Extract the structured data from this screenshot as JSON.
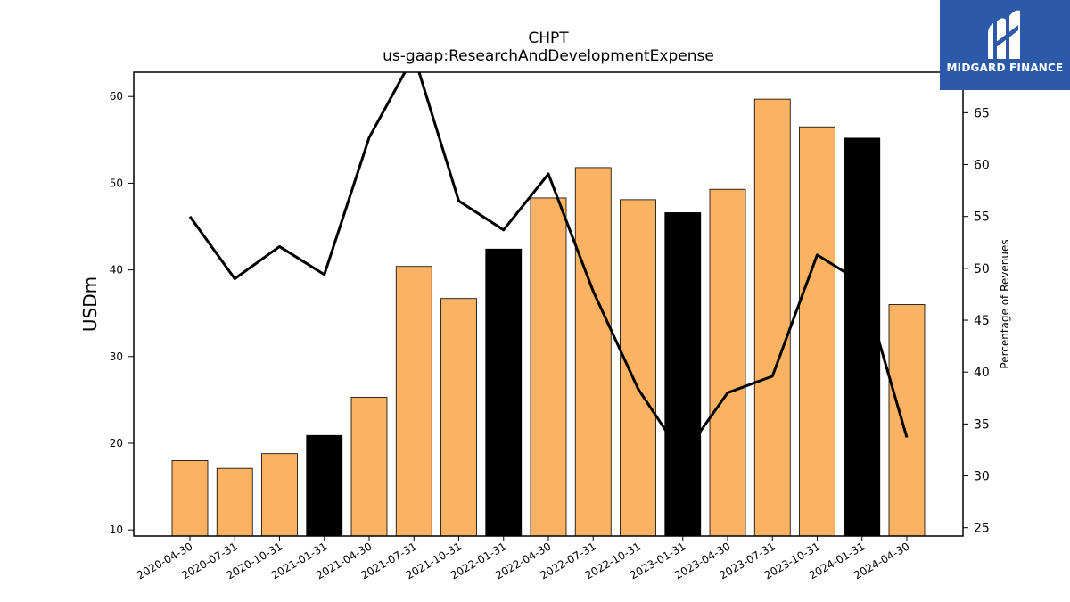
{
  "chart_data": {
    "type": "bar",
    "title": "CHPT",
    "subtitle": "us-gaap:ResearchAndDevelopmentExpense",
    "ylabel": "USDm",
    "y2label": "Percentage of Revenues",
    "categories": [
      "2020-04-30",
      "2020-07-31",
      "2020-10-31",
      "2021-01-31",
      "2021-04-30",
      "2021-07-31",
      "2021-10-31",
      "2022-01-31",
      "2022-04-30",
      "2022-07-31",
      "2022-10-31",
      "2023-01-31",
      "2023-04-30",
      "2023-07-31",
      "2023-10-31",
      "2024-01-31",
      "2024-04-30"
    ],
    "values": [
      18.0,
      17.1,
      18.8,
      20.9,
      25.3,
      40.4,
      36.7,
      42.4,
      48.3,
      51.8,
      48.1,
      46.6,
      49.3,
      59.7,
      56.5,
      55.2,
      36.0
    ],
    "bar_colors": [
      "#fbb262",
      "#fbb262",
      "#fbb262",
      "#000000",
      "#fbb262",
      "#fbb262",
      "#fbb262",
      "#000000",
      "#fbb262",
      "#fbb262",
      "#fbb262",
      "#000000",
      "#fbb262",
      "#fbb262",
      "#fbb262",
      "#000000",
      "#fbb262"
    ],
    "line_series": {
      "axis": "right",
      "color": "#000000",
      "values": [
        55.0,
        49.0,
        52.1,
        49.4,
        62.6,
        70.5,
        56.5,
        53.7,
        59.1,
        47.8,
        38.4,
        31.9,
        38.0,
        39.6,
        51.3,
        48.6,
        33.7
      ]
    },
    "ylim": [
      9.3,
      62.8
    ],
    "yticks": [
      10,
      20,
      30,
      40,
      50,
      60
    ],
    "y2lim": [
      24.2,
      68.9
    ],
    "y2ticks": [
      25,
      30,
      35,
      40,
      45,
      50,
      55,
      60,
      65
    ],
    "grid": false
  },
  "logo": {
    "text": "MIDGARD FINANCE",
    "color": "#2d5aa8"
  }
}
